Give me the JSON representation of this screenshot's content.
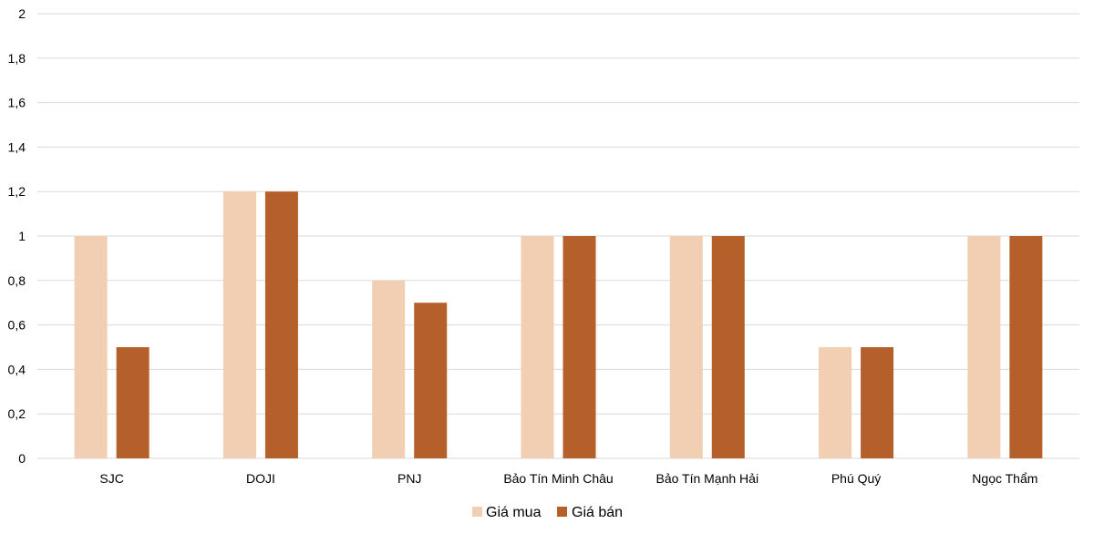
{
  "chart_data": {
    "type": "bar",
    "title": "",
    "xlabel": "",
    "ylabel": "",
    "categories": [
      "SJC",
      "DOJI",
      "PNJ",
      "Bảo Tín Minh Châu",
      "Bảo Tín Mạnh Hải",
      "Phú Quý",
      "Ngọc Thẩm"
    ],
    "series": [
      {
        "name": "Giá mua",
        "color": "#f2cfb2",
        "values": [
          1,
          1.2,
          0.8,
          1,
          1,
          0.5,
          1
        ]
      },
      {
        "name": "Giá bán",
        "color": "#b5602a",
        "values": [
          0.5,
          1.2,
          0.7,
          1,
          1,
          0.5,
          1
        ]
      }
    ],
    "ylim": [
      0,
      2
    ],
    "yticks": [
      "0",
      "0,2",
      "0,4",
      "0,6",
      "0,8",
      "1",
      "1,2",
      "1,4",
      "1,6",
      "1,8",
      "2"
    ],
    "grid": true,
    "legend_position": "bottom"
  }
}
